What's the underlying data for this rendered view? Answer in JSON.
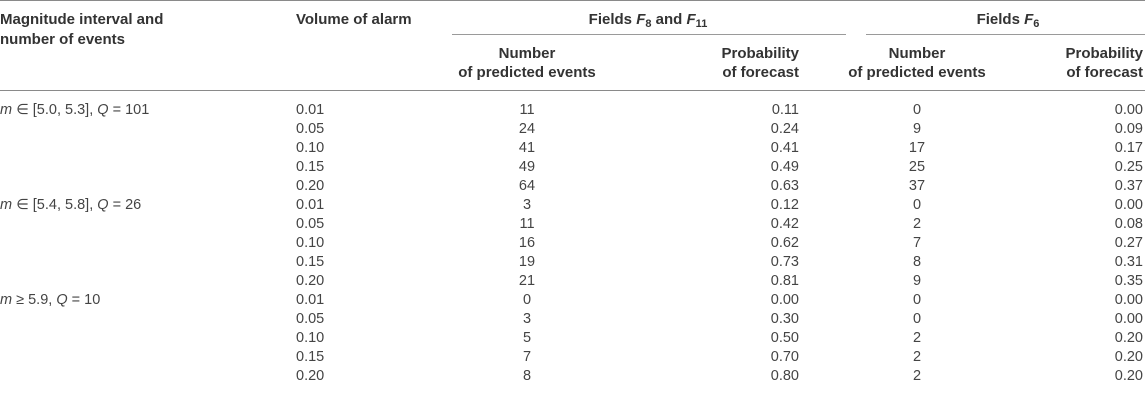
{
  "header": {
    "col1_line1": "Magnitude interval and",
    "col1_line2": "number of events",
    "col2": "Volume of alarm",
    "group1_prefix": "Fields ",
    "group1_f_a": "F",
    "group1_sub_a": "8",
    "group1_mid": " and ",
    "group1_f_b": "F",
    "group1_sub_b": "11",
    "group2_prefix": "Fields ",
    "group2_f": "F",
    "group2_sub": "6",
    "num_line1": "Number",
    "num_line2": "of predicted events",
    "prob_line1": "Probability",
    "prob_line2": "of forecast"
  },
  "groups": [
    {
      "label_parts": [
        "m",
        " ∈ [5.0, 5.3], ",
        "Q",
        " = 101"
      ],
      "rows": [
        {
          "volume": "0.01",
          "n1": "11",
          "p1": "0.11",
          "n2": "0",
          "p2": "0.00"
        },
        {
          "volume": "0.05",
          "n1": "24",
          "p1": "0.24",
          "n2": "9",
          "p2": "0.09"
        },
        {
          "volume": "0.10",
          "n1": "41",
          "p1": "0.41",
          "n2": "17",
          "p2": "0.17"
        },
        {
          "volume": "0.15",
          "n1": "49",
          "p1": "0.49",
          "n2": "25",
          "p2": "0.25"
        },
        {
          "volume": "0.20",
          "n1": "64",
          "p1": "0.63",
          "n2": "37",
          "p2": "0.37"
        }
      ]
    },
    {
      "label_parts": [
        "m",
        " ∈ [5.4, 5.8], ",
        "Q",
        " = 26"
      ],
      "rows": [
        {
          "volume": "0.01",
          "n1": "3",
          "p1": "0.12",
          "n2": "0",
          "p2": "0.00"
        },
        {
          "volume": "0.05",
          "n1": "11",
          "p1": "0.42",
          "n2": "2",
          "p2": "0.08"
        },
        {
          "volume": "0.10",
          "n1": "16",
          "p1": "0.62",
          "n2": "7",
          "p2": "0.27"
        },
        {
          "volume": "0.15",
          "n1": "19",
          "p1": "0.73",
          "n2": "8",
          "p2": "0.31"
        },
        {
          "volume": "0.20",
          "n1": "21",
          "p1": "0.81",
          "n2": "9",
          "p2": "0.35"
        }
      ]
    },
    {
      "label_parts": [
        "m",
        " ≥ 5.9, ",
        "Q",
        " = 10"
      ],
      "rows": [
        {
          "volume": "0.01",
          "n1": "0",
          "p1": "0.00",
          "n2": "0",
          "p2": "0.00"
        },
        {
          "volume": "0.05",
          "n1": "3",
          "p1": "0.30",
          "n2": "0",
          "p2": "0.00"
        },
        {
          "volume": "0.10",
          "n1": "5",
          "p1": "0.50",
          "n2": "2",
          "p2": "0.20"
        },
        {
          "volume": "0.15",
          "n1": "7",
          "p1": "0.70",
          "n2": "2",
          "p2": "0.20"
        },
        {
          "volume": "0.20",
          "n1": "8",
          "p1": "0.80",
          "n2": "2",
          "p2": "0.20"
        }
      ]
    }
  ]
}
